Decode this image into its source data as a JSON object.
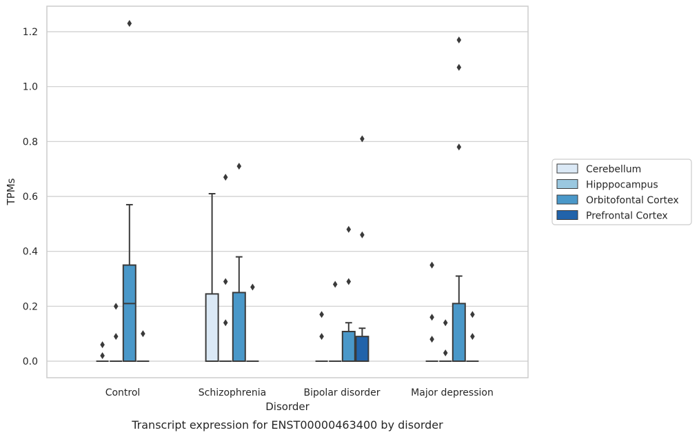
{
  "chart_data": {
    "type": "box",
    "title": "",
    "caption": "Transcript expression for ENST00000463400 by disorder",
    "xlabel": "Disorder",
    "ylabel": "TPMs",
    "ylim": [
      -0.06,
      1.29
    ],
    "yticks": [
      0.0,
      0.2,
      0.4,
      0.6,
      0.8,
      1.0,
      1.2
    ],
    "ytick_labels": [
      "0.0",
      "0.2",
      "0.4",
      "0.6",
      "0.8",
      "1.0",
      "1.2"
    ],
    "grid": "horizontal",
    "legend_position": "right",
    "categories": [
      "Control",
      "Schizophrenia",
      "Bipolar disorder",
      "Major depression"
    ],
    "series": [
      {
        "name": "Cerebellum",
        "color": "#dbe9f6",
        "boxes": [
          {
            "q1": 0,
            "median": 0,
            "q3": 0,
            "whisker_low": 0,
            "whisker_high": 0,
            "outliers": [
              0.02,
              0.06
            ]
          },
          {
            "q1": 0,
            "median": 0,
            "q3": 0.245,
            "whisker_low": 0,
            "whisker_high": 0.61,
            "outliers": []
          },
          {
            "q1": 0,
            "median": 0,
            "q3": 0,
            "whisker_low": 0,
            "whisker_high": 0,
            "outliers": [
              0.09,
              0.17
            ]
          },
          {
            "q1": 0,
            "median": 0,
            "q3": 0,
            "whisker_low": 0,
            "whisker_high": 0,
            "outliers": [
              0.08,
              0.16,
              0.35
            ]
          }
        ]
      },
      {
        "name": "Hipppocampus",
        "color": "#9ac8e0",
        "boxes": [
          {
            "q1": 0,
            "median": 0,
            "q3": 0,
            "whisker_low": 0,
            "whisker_high": 0,
            "outliers": [
              0.09,
              0.2
            ]
          },
          {
            "q1": 0,
            "median": 0,
            "q3": 0,
            "whisker_low": 0,
            "whisker_high": 0,
            "outliers": [
              0.14,
              0.29,
              0.67
            ]
          },
          {
            "q1": 0,
            "median": 0,
            "q3": 0,
            "whisker_low": 0,
            "whisker_high": 0,
            "outliers": [
              0.28
            ]
          },
          {
            "q1": 0,
            "median": 0,
            "q3": 0,
            "whisker_low": 0,
            "whisker_high": 0,
            "outliers": [
              0.03,
              0.14
            ]
          }
        ]
      },
      {
        "name": "Orbitofontal Cortex",
        "color": "#4a98c9",
        "boxes": [
          {
            "q1": 0,
            "median": 0.21,
            "q3": 0.35,
            "whisker_low": 0,
            "whisker_high": 0.57,
            "outliers": [
              1.23
            ]
          },
          {
            "q1": 0,
            "median": 0,
            "q3": 0.25,
            "whisker_low": 0,
            "whisker_high": 0.38,
            "outliers": [
              0.71
            ]
          },
          {
            "q1": 0,
            "median": 0,
            "q3": 0.108,
            "whisker_low": 0,
            "whisker_high": 0.14,
            "outliers": [
              0.29,
              0.48
            ]
          },
          {
            "q1": 0,
            "median": 0,
            "q3": 0.21,
            "whisker_low": 0,
            "whisker_high": 0.31,
            "outliers": [
              0.78,
              1.07,
              1.17
            ]
          }
        ]
      },
      {
        "name": "Prefrontal Cortex",
        "color": "#2163aa",
        "boxes": [
          {
            "q1": 0,
            "median": 0,
            "q3": 0,
            "whisker_low": 0,
            "whisker_high": 0,
            "outliers": [
              0.1
            ]
          },
          {
            "q1": 0,
            "median": 0,
            "q3": 0,
            "whisker_low": 0,
            "whisker_high": 0,
            "outliers": [
              0.27
            ]
          },
          {
            "q1": 0,
            "median": 0,
            "q3": 0.09,
            "whisker_low": 0,
            "whisker_high": 0.12,
            "outliers": [
              0.46,
              0.81
            ]
          },
          {
            "q1": 0,
            "median": 0,
            "q3": 0,
            "whisker_low": 0,
            "whisker_high": 0,
            "outliers": [
              0.09,
              0.17
            ]
          }
        ]
      }
    ]
  }
}
